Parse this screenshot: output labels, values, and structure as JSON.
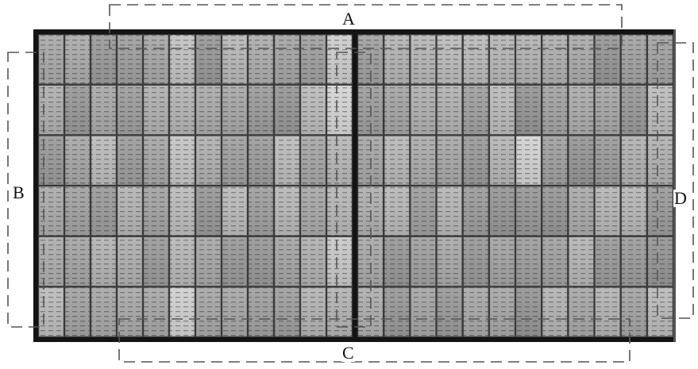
{
  "figure": {
    "labels": {
      "a": "A",
      "b": "B",
      "c": "C",
      "d": "D"
    },
    "panel": {
      "rows": 6,
      "columns_per_half": 12,
      "halves": 2
    },
    "colors": {
      "frame": "#141414",
      "grid": "#3a3a3a",
      "dash": "#555555"
    }
  }
}
